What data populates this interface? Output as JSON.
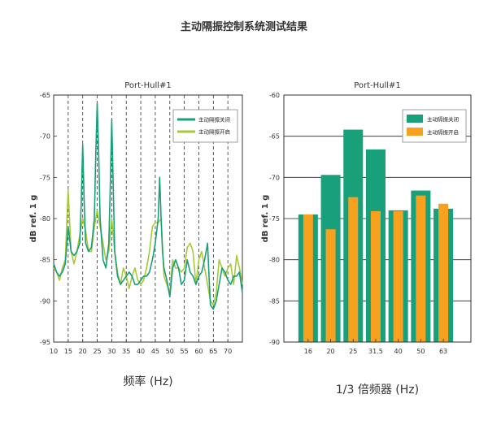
{
  "figure": {
    "title": "主动隔振控制系统测试结果"
  },
  "chart_data": [
    {
      "type": "line",
      "title": "Port-Hull#1",
      "xlabel": "频率 (Hz)",
      "ylabel": "dB ref. 1 g",
      "xlim": [
        10,
        75
      ],
      "ylim": [
        -95,
        -65
      ],
      "x_ticks": [
        10,
        15,
        20,
        25,
        30,
        35,
        40,
        45,
        50,
        55,
        60,
        65,
        70
      ],
      "y_ticks": [
        -65,
        -70,
        -75,
        -80,
        -85,
        -90,
        -95
      ],
      "dashed_vlines": [
        15,
        20,
        25,
        30,
        35,
        40,
        45,
        50,
        55,
        60,
        65,
        70
      ],
      "legend": "top-right",
      "colors": {
        "off": "#17a07a",
        "on": "#a8c83a"
      },
      "series": [
        {
          "name": "主动隔振关闭",
          "x": [
            10,
            11,
            12,
            13,
            14,
            15,
            16,
            17,
            18,
            19,
            19.5,
            20,
            20.5,
            21,
            22,
            23,
            24,
            24.5,
            25,
            25.5,
            26,
            27,
            28,
            29,
            29.5,
            30,
            30.5,
            31,
            32,
            33,
            34,
            35,
            36,
            37,
            38,
            39,
            40,
            41,
            42,
            43,
            44,
            45,
            46,
            46.5,
            47,
            47.5,
            48,
            49,
            50,
            51,
            52,
            53,
            54,
            55,
            56,
            57,
            58,
            59,
            60,
            61,
            62,
            63,
            63.5,
            64,
            65,
            66,
            67,
            68,
            69,
            70,
            71,
            72,
            73,
            74,
            75
          ],
          "y": [
            -85.5,
            -86.5,
            -87,
            -86.5,
            -85.5,
            -81,
            -84,
            -84.5,
            -84,
            -83,
            -78,
            -71,
            -78,
            -83,
            -84,
            -83.5,
            -80,
            -72,
            -66,
            -72,
            -80,
            -85,
            -86,
            -83,
            -76,
            -68,
            -76,
            -84,
            -87,
            -88,
            -87.5,
            -87,
            -86.5,
            -87,
            -88,
            -88,
            -87.5,
            -87,
            -87,
            -86.5,
            -85,
            -83,
            -80,
            -75,
            -80,
            -84,
            -86,
            -87.5,
            -89.5,
            -86,
            -85,
            -86,
            -88,
            -87.5,
            -85,
            -86.5,
            -87,
            -88,
            -87,
            -86.5,
            -85,
            -83,
            -87,
            -90.5,
            -91,
            -90,
            -88,
            -86,
            -86.5,
            -87.5,
            -88,
            -87,
            -87,
            -86.5,
            -89
          ]
        },
        {
          "name": "主动隔振开启",
          "x": [
            10,
            11,
            12,
            13,
            14,
            15,
            16,
            17,
            18,
            19,
            20,
            21,
            22,
            23,
            24,
            25,
            26,
            27,
            28,
            29,
            30,
            31,
            32,
            33,
            34,
            35,
            36,
            37,
            38,
            39,
            40,
            41,
            42,
            43,
            44,
            45,
            46,
            47,
            48,
            49,
            50,
            51,
            52,
            53,
            54,
            55,
            56,
            57,
            58,
            59,
            60,
            61,
            62,
            63,
            64,
            65,
            66,
            67,
            68,
            69,
            70,
            71,
            72,
            73,
            74,
            75
          ],
          "y": [
            -86,
            -86.5,
            -87.5,
            -86,
            -85,
            -76.5,
            -84,
            -85.5,
            -84,
            -82,
            -80,
            -81.5,
            -84,
            -84,
            -81,
            -79,
            -81,
            -83,
            -85,
            -84,
            -80,
            -84,
            -86.5,
            -88,
            -86,
            -87,
            -88.5,
            -87,
            -86,
            -87.5,
            -88,
            -87.5,
            -86,
            -84,
            -81,
            -80.5,
            -80.5,
            -80,
            -87,
            -88,
            -89,
            -85,
            -86,
            -86,
            -86.5,
            -86,
            -83.5,
            -83,
            -84,
            -88,
            -85,
            -84,
            -86,
            -88,
            -90,
            -90.5,
            -89,
            -85,
            -86,
            -87,
            -86,
            -85.5,
            -88,
            -84.5,
            -86,
            -88
          ]
        }
      ]
    },
    {
      "type": "bar",
      "title": "Port-Hull#1",
      "xlabel": "1/3 倍频器 (Hz)",
      "ylabel": "dB ref. 1 g",
      "categories": [
        "16",
        "20",
        "25",
        "31.5",
        "40",
        "50",
        "63"
      ],
      "ylim": [
        -90,
        -60
      ],
      "y_ticks": [
        -60,
        -65,
        -70,
        -75,
        -80,
        -85,
        -90
      ],
      "grid": "horizontal",
      "legend": "top-right",
      "colors": {
        "off": "#17a07a",
        "on": "#f6a21e"
      },
      "series": [
        {
          "name": "主动隔振关闭",
          "values": [
            -74.5,
            -69.7,
            -64.2,
            -66.6,
            -74.0,
            -71.6,
            -73.8
          ]
        },
        {
          "name": "主动隔振开启",
          "values": [
            -74.5,
            -76.3,
            -72.4,
            -74.1,
            -74.1,
            -72.2,
            -73.2
          ]
        }
      ]
    }
  ]
}
